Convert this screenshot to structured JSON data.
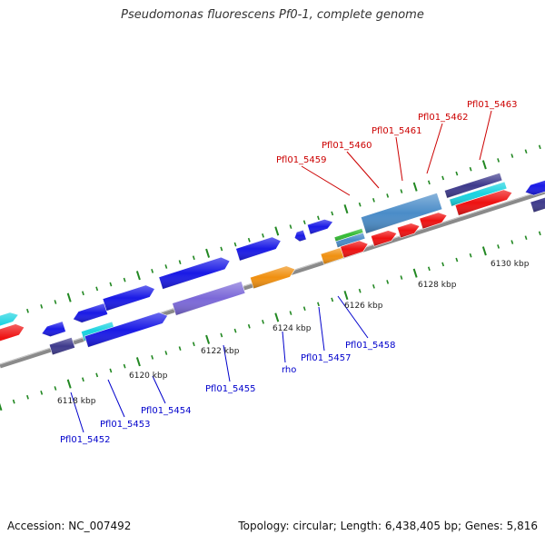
{
  "title": "Pseudomonas fluorescens Pf0-1, complete genome",
  "footer": {
    "accession": "Accession: NC_007492",
    "topology": "Topology: circular; Length: 6,438,405 bp; Genes: 5,816"
  },
  "colors": {
    "red": "#ee1111",
    "blue": "#1a1ae6",
    "purple": "#7b68d8",
    "navy": "#3e3a8c",
    "cyan": "#19d3e0",
    "orange": "#f09010",
    "steel": "#4a8cc8",
    "green": "#33bb33",
    "label_top": "#cc0000",
    "label_bottom": "#0000cc",
    "tick": "#228822",
    "backbone": "#8a8a8a"
  },
  "scale_ticks": [
    "6118 kbp",
    "6120 kbp",
    "6122 kbp",
    "6124 kbp",
    "6126 kbp",
    "6128 kbp",
    "6130 kbp"
  ],
  "top_labels": [
    "Pfl01_5459",
    "Pfl01_5460",
    "Pfl01_5461",
    "Pfl01_5462",
    "Pfl01_5463"
  ],
  "bottom_labels": [
    "Pfl01_5452",
    "Pfl01_5453",
    "Pfl01_5454",
    "Pfl01_5455",
    "rho",
    "Pfl01_5457",
    "Pfl01_5458"
  ]
}
